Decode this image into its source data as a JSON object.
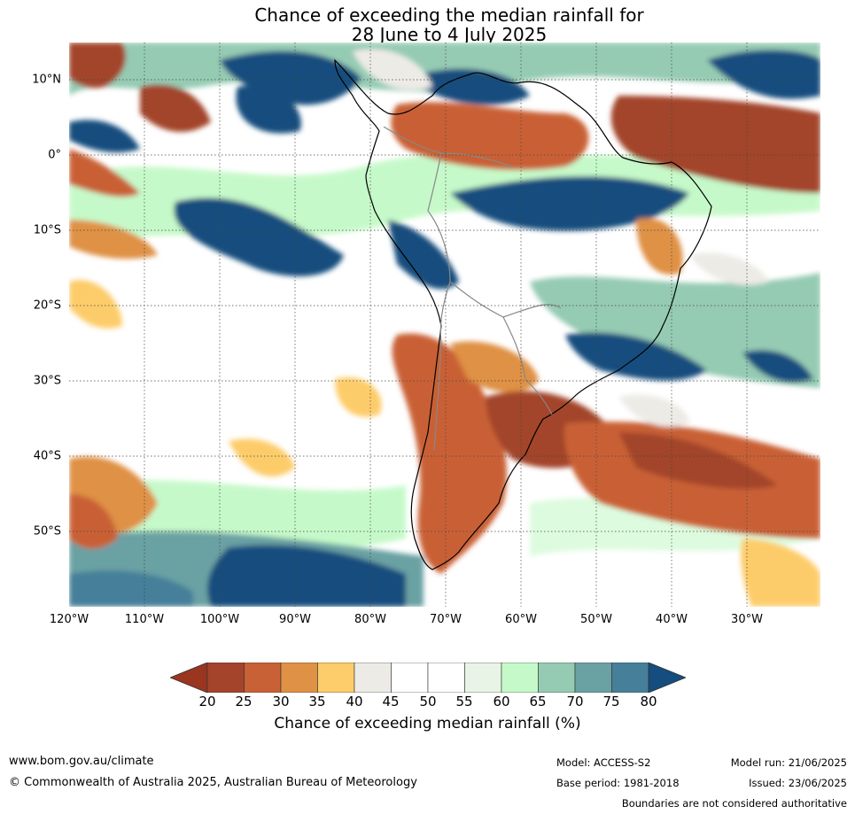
{
  "title": {
    "line1": "Chance of exceeding the median rainfall for",
    "line2": "28 June to 4 July 2025"
  },
  "map": {
    "region": "South America and surrounding oceans",
    "lat_labels": [
      "10°N",
      "0°",
      "10°S",
      "20°S",
      "30°S",
      "40°S",
      "50°S"
    ],
    "lon_labels": [
      "120°W",
      "110°W",
      "100°W",
      "90°W",
      "80°W",
      "70°W",
      "60°W",
      "50°W",
      "40°W",
      "30°W"
    ],
    "lat_range": [
      -60,
      15
    ],
    "lon_range": [
      -120,
      -20
    ],
    "gridlines": "dotted"
  },
  "colorbar": {
    "ticks": [
      "20",
      "25",
      "30",
      "35",
      "40",
      "45",
      "50",
      "55",
      "60",
      "65",
      "70",
      "75",
      "80"
    ],
    "colors": [
      "#a3442b",
      "#c96136",
      "#df9145",
      "#fdcc6b",
      "#edebe6",
      "#ffffff",
      "#ffffff",
      "#e8f5e6",
      "#c6f9c9",
      "#95cbb3",
      "#6aa1a3",
      "#457f9a",
      "#144d7e"
    ],
    "under_color": "#9a3520",
    "label": "Chance of exceeding median rainfall (%)"
  },
  "footer": {
    "website": "www.bom.gov.au/climate",
    "copyright": "© Commonwealth of Australia 2025, Australian Bureau of Meteorology",
    "model": "Model: ACCESS-S2",
    "base_period": "Base period: 1981-2018",
    "model_run": "Model run: 21/06/2025",
    "issued": "Issued: 23/06/2025",
    "disclaimer": "Boundaries are not considered authoritative"
  }
}
